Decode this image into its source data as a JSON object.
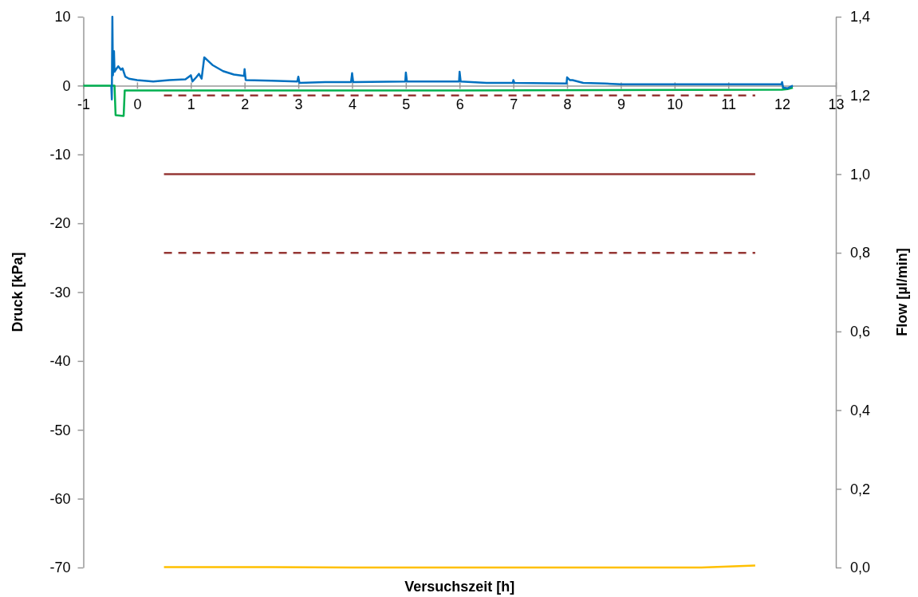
{
  "chart_data": {
    "type": "line",
    "xlabel": "Versuchszeit [h]",
    "ylabel": "Druck [kPa]",
    "y2label": "Flow [µl/min]",
    "xlim": [
      -1,
      13
    ],
    "xticks": [
      -1,
      0,
      1,
      2,
      3,
      4,
      5,
      6,
      7,
      8,
      9,
      10,
      11,
      12,
      13
    ],
    "ylim": [
      -70,
      10
    ],
    "yticks": [
      -70,
      -60,
      -50,
      -40,
      -30,
      -20,
      -10,
      0,
      10
    ],
    "y2lim": [
      0,
      1.4
    ],
    "y2ticks": [
      {
        "value": 0,
        "label": "0,0"
      },
      {
        "value": 0.2,
        "label": "0,2"
      },
      {
        "value": 0.4,
        "label": "0,4"
      },
      {
        "value": 0.6,
        "label": "0,6"
      },
      {
        "value": 0.8,
        "label": "0,8"
      },
      {
        "value": 1.0,
        "label": "1,0"
      },
      {
        "value": 1.2,
        "label": "1,2"
      },
      {
        "value": 1.4,
        "label": "1,4"
      }
    ],
    "series": [
      {
        "color": "#ffc000",
        "axis": "y2",
        "x": [
          0.5,
          2.5,
          4,
          6,
          8,
          10.5,
          11.5
        ],
        "values": [
          0.001,
          0.001,
          0.0,
          0.0,
          0.0,
          0.0,
          0.005
        ]
      },
      {
        "color": "#953735",
        "axis": "y2",
        "line_style": "dashed",
        "x": [
          0.5,
          11.5
        ],
        "values": [
          1.2,
          1.2
        ]
      },
      {
        "color": "#953735",
        "axis": "y2",
        "line_style": "solid",
        "x": [
          0.5,
          11.5
        ],
        "values": [
          1.0,
          1.0
        ]
      },
      {
        "color": "#953735",
        "axis": "y2",
        "line_style": "dashed",
        "x": [
          0.5,
          11.5
        ],
        "values": [
          0.8,
          0.8
        ]
      },
      {
        "color": "#00b050",
        "x": [
          -1,
          -0.42,
          -0.4,
          -0.25,
          -0.23,
          0,
          6,
          12,
          12.1,
          12.2
        ],
        "values": [
          0,
          0,
          -4.3,
          -4.4,
          -0.7,
          -0.7,
          -0.7,
          -0.6,
          -0.5,
          -0.3
        ]
      },
      {
        "color": "#0070c0",
        "x": [
          -0.48,
          -0.47,
          -0.46,
          -0.45,
          -0.43,
          -0.42,
          -0.38,
          -0.35,
          -0.3,
          -0.27,
          -0.22,
          -0.15,
          0,
          0.3,
          0.6,
          0.9,
          1.0,
          1.03,
          1.1,
          1.15,
          1.2,
          1.25,
          1.4,
          1.6,
          1.8,
          1.99,
          2.0,
          2.02,
          2.5,
          2.98,
          3.0,
          3.02,
          3.5,
          3.98,
          4.0,
          4.02,
          4.99,
          5.0,
          5.02,
          5.99,
          6.0,
          6.02,
          6.5,
          6.99,
          7.0,
          7.02,
          7.99,
          8.0,
          8.05,
          8.1,
          8.3,
          8.7,
          9,
          10,
          11,
          11.99,
          12.0,
          12.02,
          12.1,
          12.2
        ],
        "values": [
          0,
          -2,
          10,
          1.5,
          5,
          2,
          2.5,
          2.8,
          2.3,
          2.5,
          1.3,
          1.0,
          0.8,
          0.6,
          0.8,
          0.9,
          1.5,
          0.6,
          1.2,
          1.7,
          1.0,
          4.1,
          3.0,
          2.1,
          1.6,
          1.4,
          2.4,
          0.8,
          0.7,
          0.6,
          1.3,
          0.4,
          0.5,
          0.5,
          1.8,
          0.5,
          0.6,
          1.9,
          0.6,
          0.6,
          2.0,
          0.6,
          0.4,
          0.4,
          0.8,
          0.4,
          0.3,
          1.2,
          0.8,
          0.8,
          0.4,
          0.3,
          0.2,
          0.2,
          0.2,
          0.2,
          0.5,
          -0.3,
          -0.4,
          0
        ]
      }
    ]
  }
}
